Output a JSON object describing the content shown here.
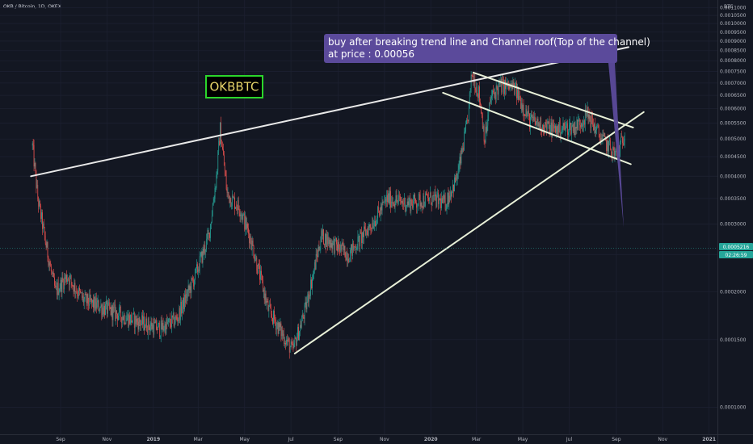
{
  "header": {
    "symbol_line": "OKB / Bitcoin, 1D, OKEX",
    "currency": "BTC"
  },
  "annotations": {
    "watermark": "OKBBTC",
    "callout_line1": "buy after breaking trend line and Channel roof(Top of the channel)",
    "callout_line2": "at price : 0.00056"
  },
  "price_badges": {
    "last_price": "0.0005216",
    "countdown": "02:26:59"
  },
  "colors": {
    "background": "#131722",
    "candle_up": "#26a69a",
    "candle_down": "#ef5350",
    "trendline": "#e8e8e8",
    "channel": "#e8f0d8",
    "callout_bg": "#5b4a9b",
    "watermark_border": "#2bd62b",
    "watermark_text": "#e6d46a"
  },
  "chart_data": {
    "type": "candlestick",
    "title": "OKB / Bitcoin, 1D, OKEX",
    "y_unit": "BTC",
    "ylim": [
      8.5e-05,
      0.001108
    ],
    "y_scale": "log",
    "y_ticks": [
      "0.0011000",
      "0.0010500",
      "0.0010000",
      "0.0009500",
      "0.0009000",
      "0.0008500",
      "0.0008000",
      "0.0007500",
      "0.0007000",
      "0.0006500",
      "0.0006000",
      "0.0005500",
      "0.0005000",
      "0.0004500",
      "0.0004000",
      "0.0003500",
      "0.0003000",
      "0.0002500",
      "0.0002000",
      "0.0001500",
      "0.0001000"
    ],
    "x_ticks": [
      "Sep",
      "Nov",
      "2019",
      "Mar",
      "May",
      "Jul",
      "Sep",
      "Nov",
      "2020",
      "Mar",
      "May",
      "Jul",
      "Sep",
      "Nov",
      "2021"
    ],
    "price_path": [
      {
        "date": "2018-07-26",
        "close": 0.00048
      },
      {
        "date": "2018-08-02",
        "close": 0.00035
      },
      {
        "date": "2018-08-12",
        "close": 0.00027
      },
      {
        "date": "2018-08-25",
        "close": 0.0002
      },
      {
        "date": "2018-09-10",
        "close": 0.00022
      },
      {
        "date": "2018-10-01",
        "close": 0.00019
      },
      {
        "date": "2018-11-01",
        "close": 0.00018
      },
      {
        "date": "2018-12-01",
        "close": 0.00017
      },
      {
        "date": "2019-01-10",
        "close": 0.00016
      },
      {
        "date": "2019-02-01",
        "close": 0.00017
      },
      {
        "date": "2019-02-25",
        "close": 0.00022
      },
      {
        "date": "2019-03-15",
        "close": 0.00028
      },
      {
        "date": "2019-03-25",
        "close": 0.0004
      },
      {
        "date": "2019-03-30",
        "close": 0.00053
      },
      {
        "date": "2019-04-08",
        "close": 0.00036
      },
      {
        "date": "2019-04-25",
        "close": 0.00033
      },
      {
        "date": "2019-05-10",
        "close": 0.00027
      },
      {
        "date": "2019-06-01",
        "close": 0.00018
      },
      {
        "date": "2019-07-03",
        "close": 0.00014
      },
      {
        "date": "2019-07-20",
        "close": 0.00018
      },
      {
        "date": "2019-08-10",
        "close": 0.00028
      },
      {
        "date": "2019-09-15",
        "close": 0.00025
      },
      {
        "date": "2019-10-20",
        "close": 0.00031
      },
      {
        "date": "2019-11-05",
        "close": 0.00035
      },
      {
        "date": "2019-12-01",
        "close": 0.00034
      },
      {
        "date": "2020-01-01",
        "close": 0.00035
      },
      {
        "date": "2020-01-20",
        "close": 0.00034
      },
      {
        "date": "2020-02-05",
        "close": 0.0004
      },
      {
        "date": "2020-02-18",
        "close": 0.00055
      },
      {
        "date": "2020-02-24",
        "close": 0.00074
      },
      {
        "date": "2020-03-04",
        "close": 0.00066
      },
      {
        "date": "2020-03-12",
        "close": 0.0005
      },
      {
        "date": "2020-03-20",
        "close": 0.00064
      },
      {
        "date": "2020-04-01",
        "close": 0.00069
      },
      {
        "date": "2020-04-20",
        "close": 0.00068
      },
      {
        "date": "2020-05-10",
        "close": 0.00056
      },
      {
        "date": "2020-06-10",
        "close": 0.00053
      },
      {
        "date": "2020-07-10",
        "close": 0.00054
      },
      {
        "date": "2020-07-25",
        "close": 0.00058
      },
      {
        "date": "2020-08-10",
        "close": 0.00051
      },
      {
        "date": "2020-08-25",
        "close": 0.00047
      },
      {
        "date": "2020-09-02",
        "close": 0.00045
      },
      {
        "date": "2020-09-12",
        "close": 0.00052
      }
    ],
    "lines": [
      {
        "name": "long-term trendline",
        "from": {
          "date": "2018-07-24",
          "price": 0.0004
        },
        "to": {
          "date": "2020-09-17",
          "price": 0.000868
        }
      },
      {
        "name": "channel top",
        "from": {
          "date": "2020-02-26",
          "price": 0.000745
        },
        "to": {
          "date": "2020-09-23",
          "price": 0.000536
        }
      },
      {
        "name": "channel bottom",
        "from": {
          "date": "2020-01-17",
          "price": 0.00066
        },
        "to": {
          "date": "2020-09-20",
          "price": 0.00043
        }
      },
      {
        "name": "support trendline",
        "from": {
          "date": "2019-07-06",
          "price": 0.000138
        },
        "to": {
          "date": "2020-10-07",
          "price": 0.000588
        }
      }
    ]
  }
}
